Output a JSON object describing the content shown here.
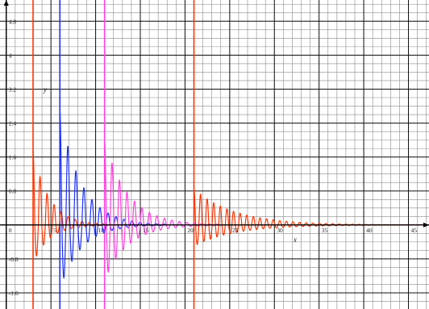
{
  "chart_data": {
    "type": "line",
    "title": "",
    "xlabel": "x",
    "ylabel": "y",
    "xlim": [
      -0.7,
      47.3
    ],
    "ylim": [
      -1.98,
      5.3
    ],
    "grid": true,
    "x_ticks": [
      0,
      5,
      10,
      15,
      20,
      25,
      30,
      35,
      40,
      45
    ],
    "x_tick_labels": [
      "0",
      "5",
      "10",
      "15",
      "20",
      "25",
      "30",
      "35",
      "40",
      "45"
    ],
    "y_ticks": [
      -1.6,
      -0.8,
      0.8,
      1.6,
      2.4,
      3.2,
      4,
      4.8
    ],
    "y_tick_labels": [
      "-1.6",
      "-0.8",
      "0.8",
      "1.6",
      "2.4",
      "3.2",
      "4",
      "4.8"
    ],
    "series": [
      {
        "color": "#ff3300",
        "x_start": 3,
        "peak": 1.75,
        "trough": -0.9,
        "decay": 0.55,
        "frequency": 8.0,
        "x_end": 15
      },
      {
        "color": "#1a2fff",
        "x_start": 6,
        "peak": 2.7,
        "trough": -1.5,
        "decay": 0.42,
        "frequency": 7.0,
        "x_end": 18
      },
      {
        "color": "#ff40e0",
        "x_start": 11,
        "peak": 2.0,
        "trough": -1.3,
        "decay": 0.38,
        "frequency": 7.5,
        "x_end": 24
      },
      {
        "color": "#ff3300",
        "x_start": 21,
        "peak": 0.85,
        "trough": -0.5,
        "decay": 0.22,
        "frequency": 8.5,
        "x_end": 47.3
      }
    ],
    "spike_lines": [
      {
        "color": "#ff3300",
        "x": 3
      },
      {
        "color": "#1a2fff",
        "x": 6
      },
      {
        "color": "#ff40e0",
        "x": 11
      },
      {
        "color": "#ff3300",
        "x": 21
      }
    ]
  }
}
